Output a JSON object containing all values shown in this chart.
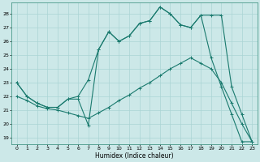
{
  "xlabel": "Humidex (Indice chaleur)",
  "bg_color": "#cce8e8",
  "line_color": "#1a7a6e",
  "grid_color": "#aad4d4",
  "spine_color": "#4a9a8a",
  "xlim": [
    -0.5,
    23.5
  ],
  "ylim": [
    18.5,
    28.8
  ],
  "yticks": [
    19,
    20,
    21,
    22,
    23,
    24,
    25,
    26,
    27,
    28
  ],
  "xticks": [
    0,
    1,
    2,
    3,
    4,
    5,
    6,
    7,
    8,
    9,
    10,
    11,
    12,
    13,
    14,
    15,
    16,
    17,
    18,
    19,
    20,
    21,
    22,
    23
  ],
  "line1_x": [
    0,
    1,
    2,
    3,
    4,
    5,
    6,
    7,
    8,
    9,
    10,
    11,
    12,
    13,
    14,
    15,
    16,
    17,
    18,
    19,
    20,
    21,
    22,
    23
  ],
  "line1_y": [
    23.0,
    22.0,
    21.5,
    21.2,
    21.2,
    21.8,
    21.8,
    19.9,
    25.4,
    26.7,
    26.0,
    26.4,
    27.3,
    27.5,
    28.5,
    28.0,
    27.2,
    27.0,
    27.9,
    24.8,
    22.7,
    20.7,
    18.7,
    18.7
  ],
  "line2_x": [
    0,
    1,
    2,
    3,
    4,
    5,
    6,
    7,
    8,
    9,
    10,
    11,
    12,
    13,
    14,
    15,
    16,
    17,
    18,
    19,
    20,
    21,
    22,
    23
  ],
  "line2_y": [
    23.0,
    22.0,
    21.5,
    21.2,
    21.2,
    21.8,
    22.0,
    23.2,
    25.4,
    26.7,
    26.0,
    26.4,
    27.3,
    27.5,
    28.5,
    28.0,
    27.2,
    27.0,
    27.9,
    27.9,
    27.9,
    22.7,
    20.7,
    18.7
  ],
  "line3_x": [
    0,
    1,
    2,
    3,
    4,
    5,
    6,
    7,
    8,
    9,
    10,
    11,
    12,
    13,
    14,
    15,
    16,
    17,
    18,
    19,
    20,
    21,
    22,
    23
  ],
  "line3_y": [
    22.0,
    21.7,
    21.3,
    21.1,
    21.0,
    20.8,
    20.6,
    20.4,
    20.8,
    21.2,
    21.7,
    22.1,
    22.6,
    23.0,
    23.5,
    24.0,
    24.4,
    24.8,
    24.4,
    24.0,
    23.0,
    21.5,
    20.0,
    18.7
  ]
}
